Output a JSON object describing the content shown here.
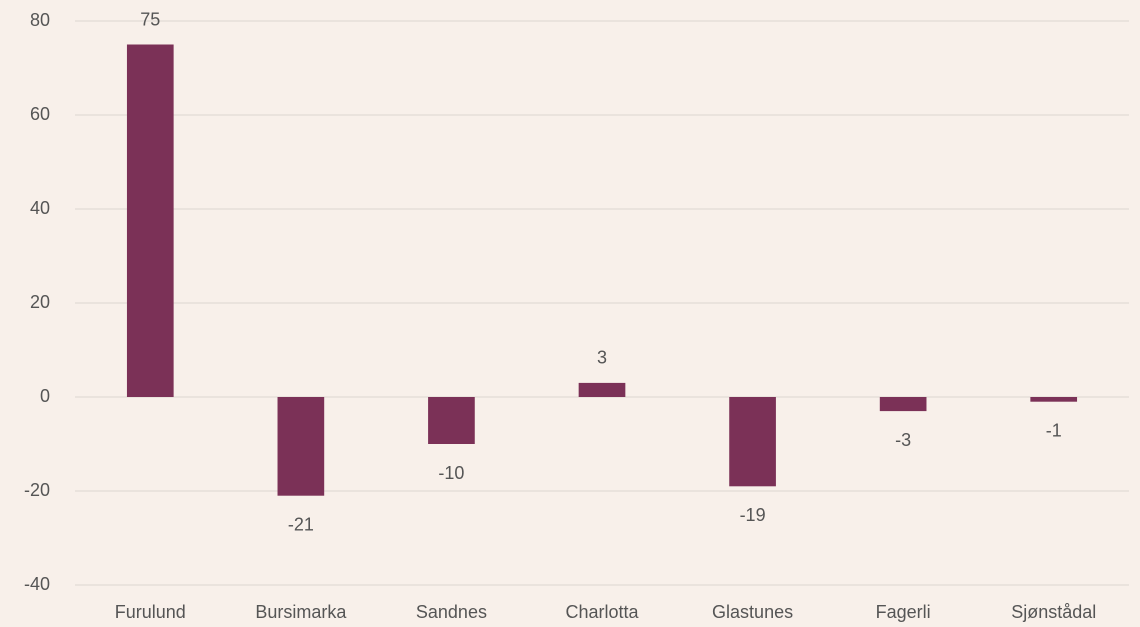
{
  "chart_data": {
    "type": "bar",
    "categories": [
      "Furulund",
      "Bursimarka",
      "Sandnes",
      "Charlotta",
      "Glastunes",
      "Fagerli",
      "Sjønstådal"
    ],
    "values": [
      75,
      -21,
      -10,
      3,
      -19,
      -3,
      -1
    ],
    "color": "#7b3157",
    "ylim": [
      -40,
      80
    ],
    "yticks": [
      -40,
      -20,
      0,
      20,
      40,
      60,
      80
    ],
    "grid": true,
    "data_labels": true
  }
}
